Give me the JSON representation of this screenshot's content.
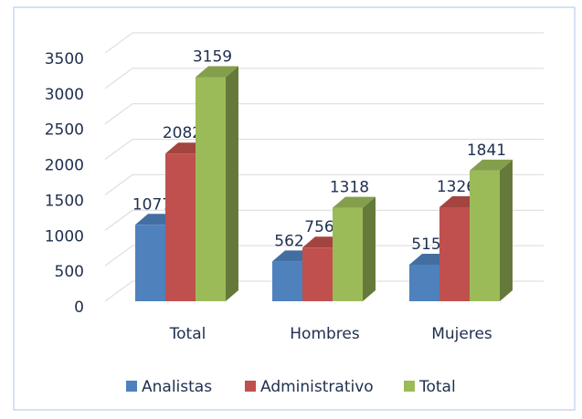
{
  "chart_data": {
    "type": "bar3d",
    "categories": [
      "Total",
      "Hombres",
      "Mujeres"
    ],
    "series": [
      {
        "name": "Analistas",
        "color": "#4f81bd",
        "values": [
          1077,
          562,
          515
        ]
      },
      {
        "name": "Administrativo",
        "color": "#c0504d",
        "values": [
          2082,
          756,
          1326
        ]
      },
      {
        "name": "Total",
        "color": "#9bbb59",
        "values": [
          3159,
          1318,
          1841
        ]
      }
    ],
    "ylim": [
      0,
      3500
    ],
    "yticks": [
      0,
      500,
      1000,
      1500,
      2000,
      2500,
      3000,
      3500
    ],
    "grid": true,
    "legend": "bottom"
  }
}
